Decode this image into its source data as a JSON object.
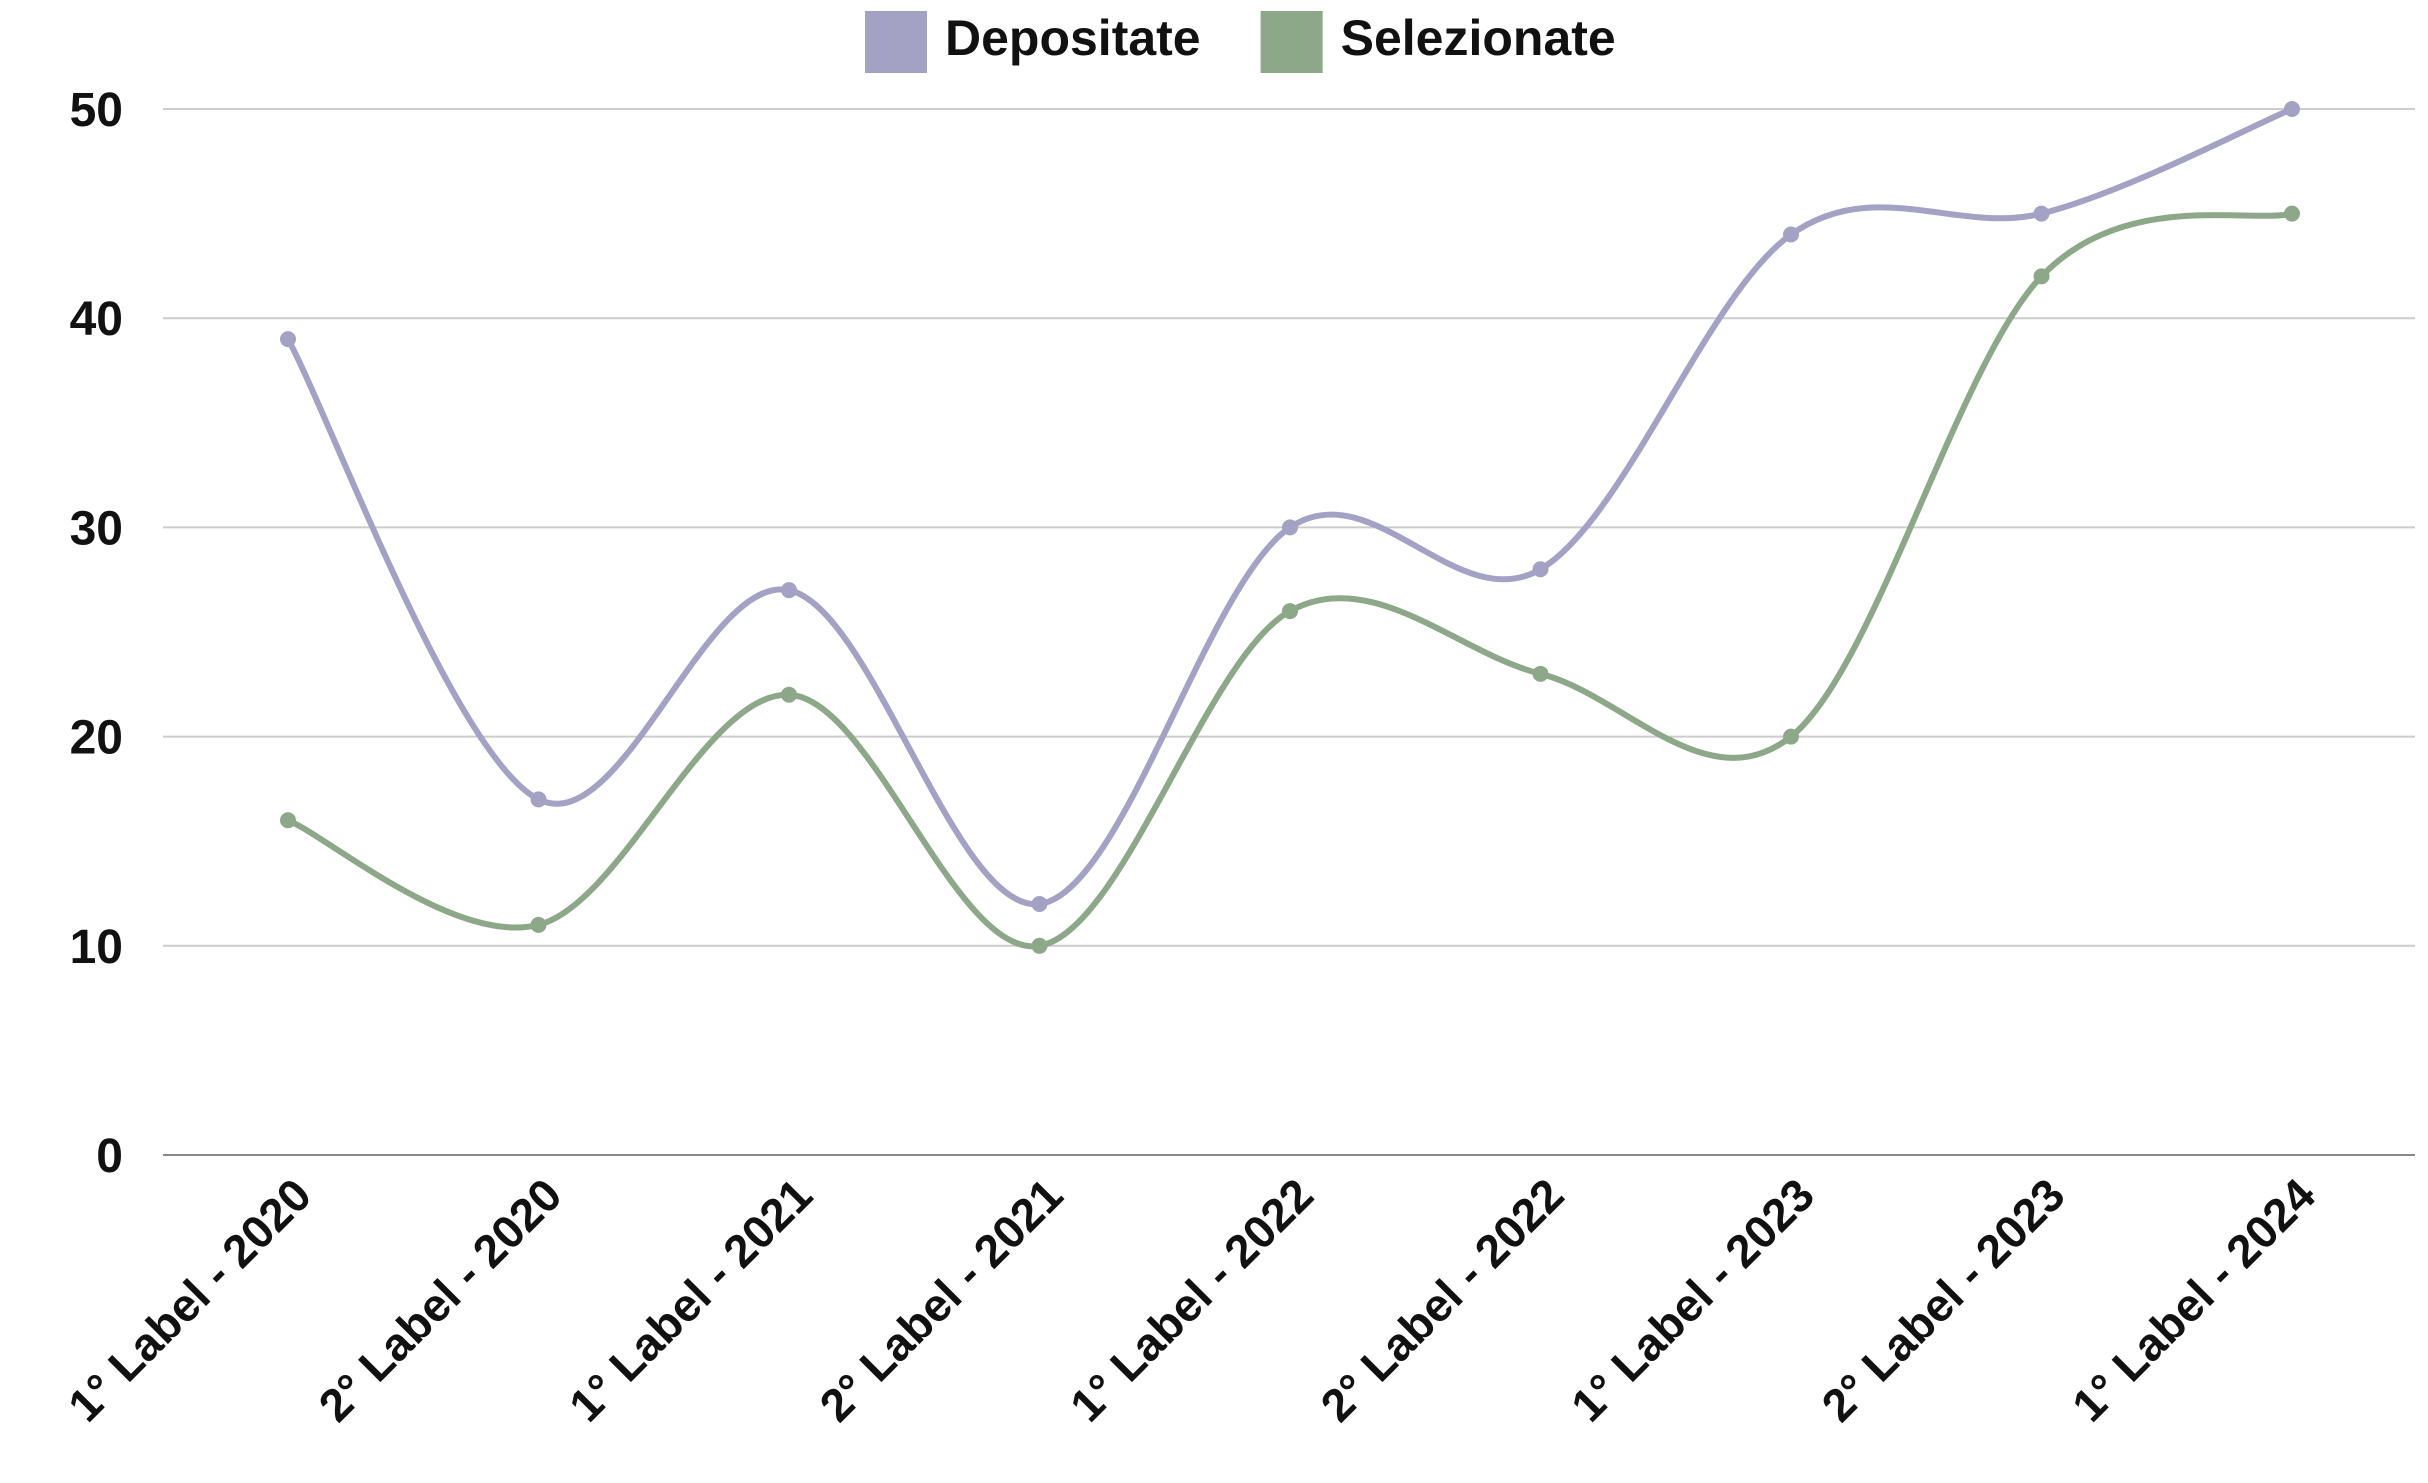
{
  "chart_data": {
    "type": "line",
    "categories": [
      "1° Label - 2020",
      "2° Label - 2020",
      "1° Label - 2021",
      "2° Label - 2021",
      "1° Label - 2022",
      "2° Label - 2022",
      "1° Label - 2023",
      "2° Label - 2023",
      "1° Label - 2024"
    ],
    "series": [
      {
        "name": "Depositate",
        "color": "#a3a1c4",
        "values": [
          39,
          17,
          27,
          12,
          30,
          28,
          44,
          45,
          50
        ]
      },
      {
        "name": "Selezionate",
        "color": "#8ca888",
        "values": [
          16,
          11,
          22,
          10,
          26,
          23,
          20,
          42,
          45
        ]
      }
    ],
    "ylim": [
      0,
      50
    ],
    "yticks": [
      0,
      10,
      20,
      30,
      40,
      50
    ],
    "grid": true,
    "legend": "top",
    "smooth": true
  }
}
